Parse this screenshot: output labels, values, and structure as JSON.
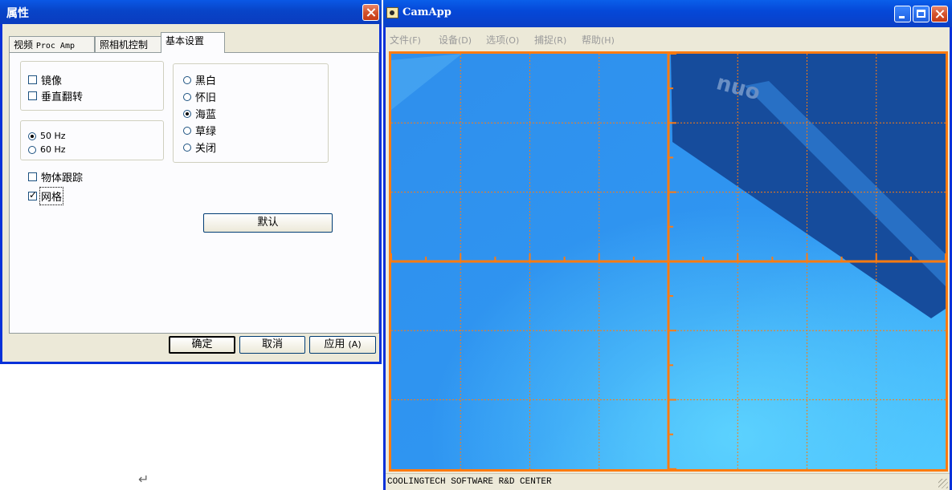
{
  "dialog": {
    "title": "属性",
    "tabs": [
      {
        "label_pre": "视频 ",
        "label_mono": "Proc Amp"
      },
      {
        "label": "照相机控制"
      },
      {
        "label": "基本设置"
      }
    ],
    "mirror_label": "镜像",
    "mirror_checked": false,
    "vflip_label": "垂直翻转",
    "vflip_checked": false,
    "hz50_label": "50 Hz",
    "hz60_label": "60 Hz",
    "hz_selected": "50 Hz",
    "tracking_label": "物体跟踪",
    "tracking_checked": false,
    "grid_label": "网格",
    "grid_checked": true,
    "color_modes": [
      "黑白",
      "怀旧",
      "海蓝",
      "草绿",
      "关闭"
    ],
    "color_selected": "海蓝",
    "default_button": "默认",
    "ok_button": "确定",
    "cancel_button": "取消",
    "apply_button_text": "应用",
    "apply_button_key": "(A)"
  },
  "camapp": {
    "title": "CamApp",
    "menu": [
      {
        "label": "文件",
        "key": "(F)"
      },
      {
        "label": "设备",
        "key": "(D)"
      },
      {
        "label": "选项",
        "key": "(O)"
      },
      {
        "label": "捕捉",
        "key": "(R)"
      },
      {
        "label": "帮助",
        "key": "(H)"
      }
    ],
    "status_text": "COOLINGTECH SOFTWARE R&D CENTER",
    "video_label": "onu",
    "grid_color": "#ff7b10",
    "video_color": "#2a90f0"
  },
  "desktop": {
    "enter_glyph": "↵"
  }
}
